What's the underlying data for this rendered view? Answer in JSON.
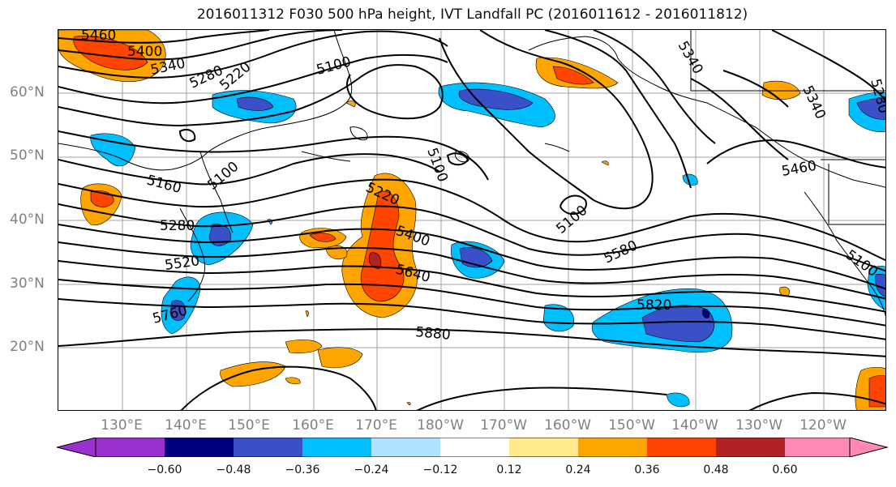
{
  "title": "2016011312 F030 500 hPa height, IVT Landfall PC (2016011612 - 2016011812)",
  "lat_labels": [
    "60°N",
    "50°N",
    "40°N",
    "30°N",
    "20°N"
  ],
  "lon_labels": [
    "130°E",
    "140°E",
    "150°E",
    "160°E",
    "170°E",
    "180°W",
    "170°W",
    "160°W",
    "150°W",
    "140°W",
    "130°W",
    "120°W"
  ],
  "contour_labels": [
    "5460",
    "5400",
    "5340",
    "5280",
    "5220",
    "5100",
    "5340",
    "5280",
    "5340",
    "5100",
    "5160",
    "5100",
    "5220",
    "5400",
    "5280",
    "5520",
    "5640",
    "5580",
    "5760",
    "5100",
    "5820",
    "5880",
    "5460",
    "5100"
  ],
  "colorbar": {
    "ticks": [
      "−0.60",
      "−0.48",
      "−0.36",
      "−0.24",
      "−0.12",
      "0.12",
      "0.24",
      "0.36",
      "0.48",
      "0.60"
    ],
    "colors": [
      "#9b30d0",
      "#000080",
      "#3a50c8",
      "#00bfff",
      "#b0e2ff",
      "#ffffff",
      "#ffe98a",
      "#ffa500",
      "#ff4500",
      "#b22222",
      "#ff88b4"
    ]
  }
}
